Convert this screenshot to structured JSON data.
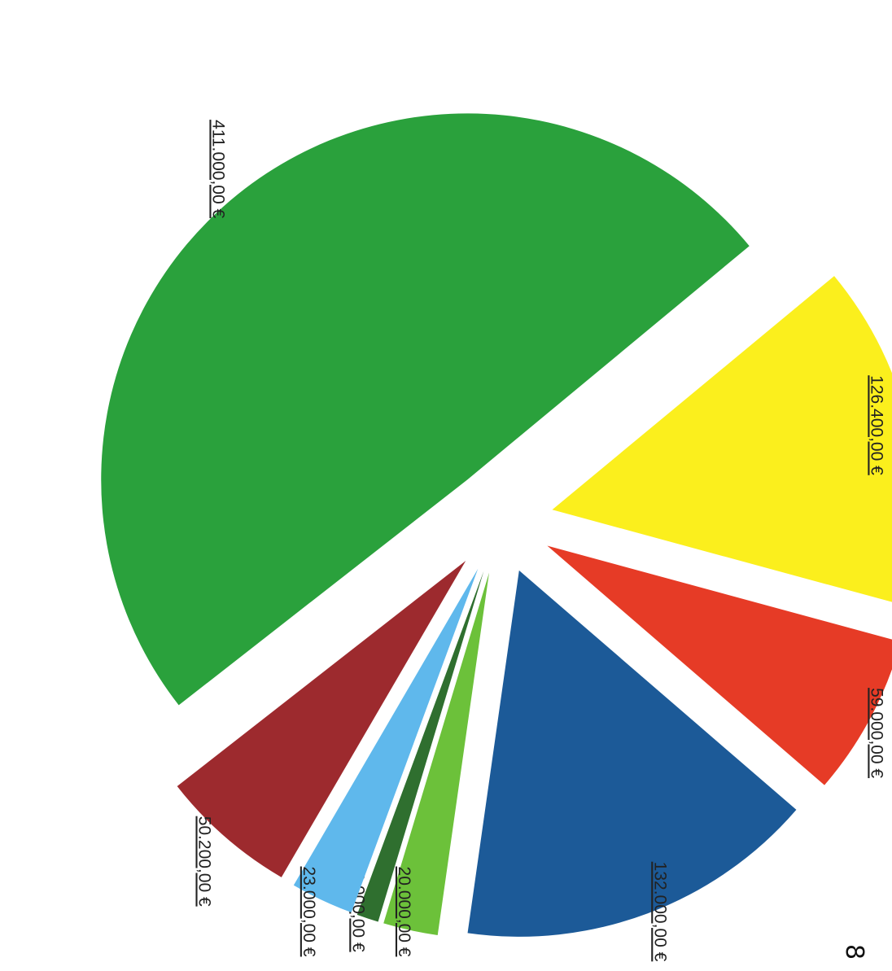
{
  "chart_data": {
    "type": "pie",
    "title": "",
    "exploded": true,
    "orientation": "rotated 90 degrees clockwise on the page",
    "slices": [
      {
        "label": "411.000,00 €",
        "value": 411000,
        "color": "#2aa13c"
      },
      {
        "label": "126.400,00 €",
        "value": 126400,
        "color": "#fbef1d"
      },
      {
        "label": "59.000,00 €",
        "value": 59000,
        "color": "#e63b26"
      },
      {
        "label": "132.000,00 €",
        "value": 132000,
        "color": "#1c5a98"
      },
      {
        "label": "20.000,00 €",
        "value": 20000,
        "color": "#6cc13a"
      },
      {
        "label": "8.000,00 €",
        "value": 8000,
        "color": "#2f6f2f"
      },
      {
        "label": "23.000,00 €",
        "value": 23000,
        "color": "#5fb8ec"
      },
      {
        "label": "50.200,00 €",
        "value": 50200,
        "color": "#9d2a2e"
      }
    ]
  },
  "page": {
    "page_number": "8"
  }
}
